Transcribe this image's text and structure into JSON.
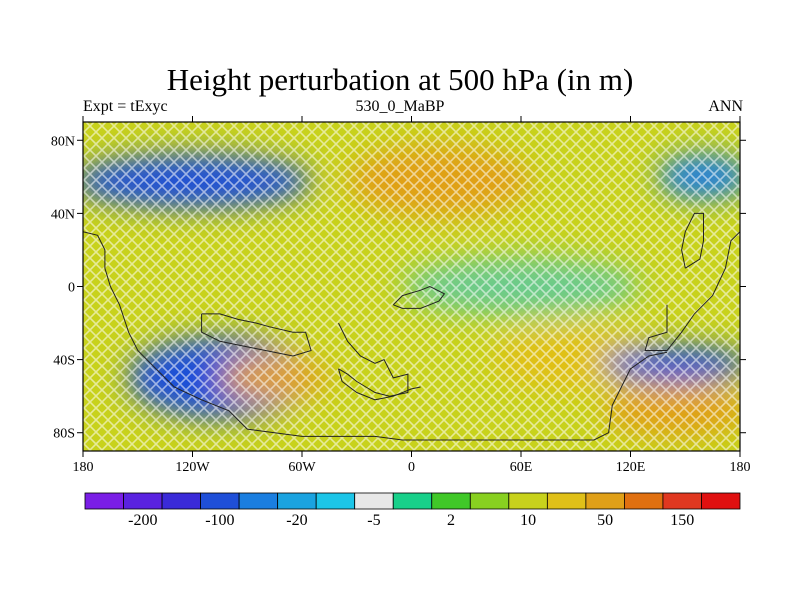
{
  "title": "Height perturbation at 500 hPa (in m)",
  "left_string": "Expt = tExyc",
  "center_string": "530_0_MaBP",
  "right_string": "ANN",
  "chart_data": {
    "type": "heatmap",
    "variable": "500 hPa height perturbation",
    "units": "m",
    "x_ticks": [
      "180",
      "120W",
      "60W",
      "0",
      "60E",
      "120E",
      "180"
    ],
    "y_ticks": [
      "80N",
      "40N",
      "0",
      "40S",
      "80S"
    ],
    "xlim": [
      -180,
      180
    ],
    "ylim": [
      -90,
      90
    ],
    "colorbar": {
      "levels": [
        -200,
        -100,
        -20,
        -5,
        2,
        10,
        50,
        150
      ],
      "labels": [
        "-200",
        "-100",
        "-20",
        "-5",
        "2",
        "10",
        "50",
        "150"
      ],
      "colors": [
        "#7a1ee6",
        "#5a22e0",
        "#3a2ad8",
        "#1f4fd8",
        "#1a7ee0",
        "#1aa3e0",
        "#1cc5e8",
        "#e8e8e8",
        "#18d08a",
        "#40c828",
        "#88d020",
        "#c8d21c",
        "#e0c018",
        "#e0a018",
        "#e07010",
        "#e03820",
        "#e01010"
      ]
    },
    "features": [
      {
        "name": "northern high-latitude low",
        "lon": [
          -180,
          -60
        ],
        "lat": [
          45,
          70
        ],
        "value_range": "-100 to -20"
      },
      {
        "name": "North Atlantic/European high",
        "lon": [
          -30,
          60
        ],
        "lat": [
          40,
          75
        ],
        "value_range": "50 to 150"
      },
      {
        "name": "North Pacific low",
        "lon": [
          140,
          180
        ],
        "lat": [
          50,
          70
        ],
        "value_range": "-20"
      },
      {
        "name": "South Pacific low",
        "lon": [
          -150,
          -60
        ],
        "lat": [
          -70,
          -30
        ],
        "value_range": "-100 to -20"
      },
      {
        "name": "South Atlantic high",
        "lon": [
          -100,
          -50
        ],
        "lat": [
          -60,
          -40
        ],
        "value_range": "50 to 150"
      },
      {
        "name": "Southern Indian Ocean high",
        "lon": [
          50,
          130
        ],
        "lat": [
          -55,
          -25
        ],
        "value_range": "10 to 50"
      },
      {
        "name": "Australian-sector low",
        "lon": [
          110,
          180
        ],
        "lat": [
          -50,
          -35
        ],
        "value_range": "-100 to -20"
      },
      {
        "name": "Southern high near 150E",
        "lon": [
          110,
          180
        ],
        "lat": [
          -80,
          -55
        ],
        "value_range": "50 to 150"
      }
    ]
  }
}
